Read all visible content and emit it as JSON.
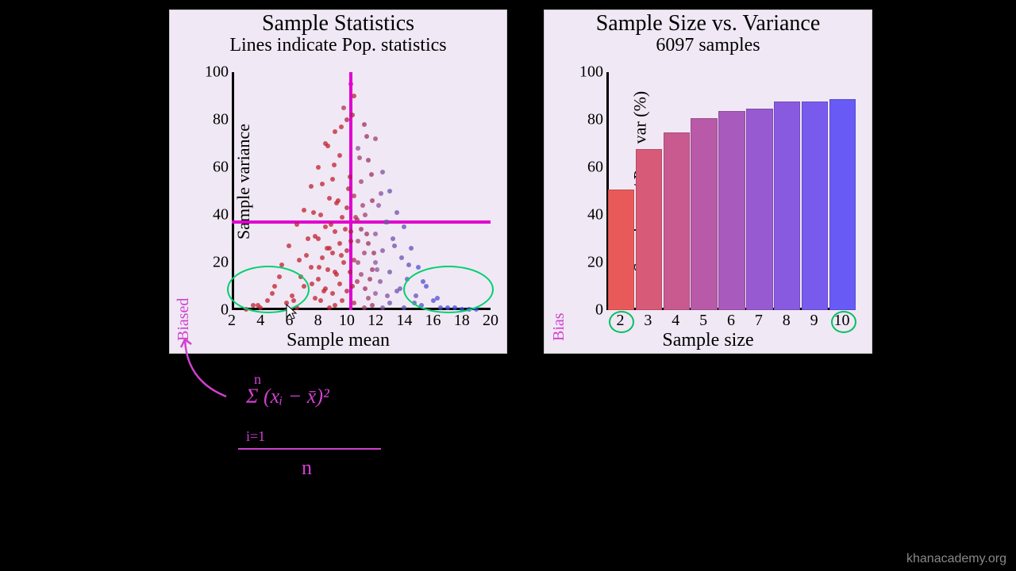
{
  "watermark": "khanacademy.org",
  "annotations": {
    "biased_left": "Biased",
    "biased_right": "Bias",
    "formula_top": "Σ (xᵢ − x̄)²",
    "formula_idx": "i=1",
    "formula_n_top": "n",
    "formula_denom": "n"
  },
  "scatter": {
    "title": "Sample Statistics",
    "subtitle": "Lines indicate Pop. statistics",
    "xlabel": "Sample mean",
    "ylabel": "Sample variance",
    "xlim": [
      2,
      20
    ],
    "ylim": [
      0,
      100
    ],
    "xticks": [
      2,
      4,
      6,
      8,
      10,
      12,
      14,
      16,
      18,
      20
    ],
    "yticks": [
      0,
      20,
      40,
      60,
      80,
      100
    ],
    "pop_mean_x": 10.3,
    "pop_var_y": 37,
    "cross_color": "#e000d0",
    "point_radius": 3,
    "points": [
      [
        10.3,
        95,
        "#e000d0"
      ],
      [
        10.5,
        90,
        "#c02030"
      ],
      [
        9.8,
        85,
        "#b03050"
      ],
      [
        10.0,
        80,
        "#b02040"
      ],
      [
        11.2,
        78,
        "#a03060"
      ],
      [
        9.2,
        75,
        "#c02030"
      ],
      [
        12.0,
        72,
        "#a04070"
      ],
      [
        8.5,
        70,
        "#c02030"
      ],
      [
        10.8,
        68,
        "#9050a0"
      ],
      [
        9.5,
        65,
        "#c02030"
      ],
      [
        11.5,
        63,
        "#a03060"
      ],
      [
        8.0,
        60,
        "#c02030"
      ],
      [
        12.5,
        58,
        "#8050a0"
      ],
      [
        10.2,
        56,
        "#b02040"
      ],
      [
        9.0,
        55,
        "#c02030"
      ],
      [
        11.0,
        54,
        "#a04070"
      ],
      [
        7.5,
        52,
        "#c02030"
      ],
      [
        13.0,
        50,
        "#7050b0"
      ],
      [
        10.5,
        48,
        "#b03050"
      ],
      [
        8.8,
        47,
        "#c02030"
      ],
      [
        11.8,
        46,
        "#a03060"
      ],
      [
        9.3,
        45,
        "#c02030"
      ],
      [
        12.2,
        44,
        "#9050a0"
      ],
      [
        10.0,
        43,
        "#b02040"
      ],
      [
        7.0,
        42,
        "#c02030"
      ],
      [
        13.5,
        41,
        "#7050b0"
      ],
      [
        8.2,
        40,
        "#c02030"
      ],
      [
        11.3,
        40,
        "#a04070"
      ],
      [
        9.7,
        39,
        "#c02030"
      ],
      [
        10.7,
        38,
        "#b03050"
      ],
      [
        12.8,
        37,
        "#8050a0"
      ],
      [
        6.5,
        36,
        "#c02030"
      ],
      [
        14.0,
        35,
        "#6050c0"
      ],
      [
        8.5,
        35,
        "#c02030"
      ],
      [
        11.0,
        34,
        "#a03060"
      ],
      [
        9.2,
        33,
        "#c02030"
      ],
      [
        10.3,
        33,
        "#b02040"
      ],
      [
        12.0,
        32,
        "#9050a0"
      ],
      [
        7.8,
        31,
        "#c02030"
      ],
      [
        13.2,
        30,
        "#7050b0"
      ],
      [
        8.0,
        30,
        "#c02030"
      ],
      [
        10.8,
        29,
        "#a04070"
      ],
      [
        9.5,
        28,
        "#c02030"
      ],
      [
        11.5,
        28,
        "#a03060"
      ],
      [
        6.0,
        27,
        "#c02030"
      ],
      [
        14.5,
        26,
        "#6050c0"
      ],
      [
        8.8,
        26,
        "#c02030"
      ],
      [
        10.0,
        25,
        "#b02040"
      ],
      [
        12.5,
        25,
        "#8050a0"
      ],
      [
        9.0,
        24,
        "#c02030"
      ],
      [
        11.2,
        24,
        "#a04070"
      ],
      [
        7.2,
        23,
        "#c02030"
      ],
      [
        13.8,
        22,
        "#7050b0"
      ],
      [
        8.3,
        22,
        "#c02030"
      ],
      [
        10.5,
        21,
        "#b03050"
      ],
      [
        9.8,
        20,
        "#c02030"
      ],
      [
        12.0,
        20,
        "#9050a0"
      ],
      [
        5.5,
        19,
        "#c02030"
      ],
      [
        15.0,
        18,
        "#5050d0"
      ],
      [
        7.5,
        18,
        "#c02030"
      ],
      [
        11.8,
        17,
        "#a03060"
      ],
      [
        8.7,
        17,
        "#c02030"
      ],
      [
        10.2,
        16,
        "#b02040"
      ],
      [
        13.0,
        16,
        "#7050b0"
      ],
      [
        9.3,
        15,
        "#c02030"
      ],
      [
        11.0,
        15,
        "#a04070"
      ],
      [
        6.8,
        14,
        "#c02030"
      ],
      [
        14.2,
        13,
        "#6050c0"
      ],
      [
        8.0,
        13,
        "#c02030"
      ],
      [
        10.7,
        12,
        "#b03050"
      ],
      [
        12.3,
        12,
        "#8050a0"
      ],
      [
        9.5,
        11,
        "#c02030"
      ],
      [
        5.0,
        10,
        "#c02030"
      ],
      [
        15.5,
        10,
        "#5050d0"
      ],
      [
        7.0,
        10,
        "#c02030"
      ],
      [
        11.3,
        9,
        "#a03060"
      ],
      [
        8.5,
        9,
        "#c02030"
      ],
      [
        13.5,
        8,
        "#7050b0"
      ],
      [
        10.0,
        8,
        "#b02040"
      ],
      [
        9.0,
        7,
        "#c02030"
      ],
      [
        12.0,
        7,
        "#9050a0"
      ],
      [
        6.2,
        6,
        "#c02030"
      ],
      [
        14.8,
        6,
        "#6050c0"
      ],
      [
        7.8,
        5,
        "#c02030"
      ],
      [
        11.5,
        5,
        "#a04070"
      ],
      [
        4.5,
        4,
        "#c02030"
      ],
      [
        16.0,
        4,
        "#5050d0"
      ],
      [
        8.2,
        4,
        "#c02030"
      ],
      [
        10.5,
        3,
        "#b03050"
      ],
      [
        13.0,
        3,
        "#7050b0"
      ],
      [
        5.8,
        3,
        "#c02030"
      ],
      [
        15.2,
        2,
        "#5050d0"
      ],
      [
        9.2,
        2,
        "#c02030"
      ],
      [
        11.8,
        2,
        "#a03060"
      ],
      [
        3.5,
        2,
        "#c02030"
      ],
      [
        17.0,
        1,
        "#4050e0"
      ],
      [
        6.5,
        1,
        "#c02030"
      ],
      [
        14.0,
        1,
        "#6050c0"
      ],
      [
        4.0,
        1,
        "#c02030"
      ],
      [
        16.5,
        1,
        "#5050d0"
      ],
      [
        8.8,
        1,
        "#c02030"
      ],
      [
        12.5,
        1,
        "#8050a0"
      ],
      [
        3.0,
        0.5,
        "#c02030"
      ],
      [
        18.0,
        0.5,
        "#4050e0"
      ],
      [
        10.4,
        82,
        "#b02040"
      ],
      [
        9.6,
        77,
        "#c02030"
      ],
      [
        11.4,
        73,
        "#a03060"
      ],
      [
        8.7,
        69,
        "#c02030"
      ],
      [
        10.9,
        64,
        "#a04070"
      ],
      [
        9.1,
        61,
        "#c02030"
      ],
      [
        11.7,
        57,
        "#a03060"
      ],
      [
        8.3,
        53,
        "#c02030"
      ],
      [
        10.1,
        51,
        "#b02040"
      ],
      [
        12.4,
        49,
        "#8050a0"
      ],
      [
        9.4,
        46,
        "#c02030"
      ],
      [
        11.1,
        44,
        "#a04070"
      ],
      [
        7.7,
        41,
        "#c02030"
      ],
      [
        10.6,
        39,
        "#b03050"
      ],
      [
        12.7,
        37,
        "#8050a0"
      ],
      [
        8.9,
        36,
        "#c02030"
      ],
      [
        9.9,
        34,
        "#c02030"
      ],
      [
        11.4,
        32,
        "#a03060"
      ],
      [
        7.3,
        30,
        "#c02030"
      ],
      [
        10.3,
        29,
        "#b02040"
      ],
      [
        13.3,
        27,
        "#7050b0"
      ],
      [
        8.6,
        26,
        "#c02030"
      ],
      [
        11.9,
        24,
        "#a03060"
      ],
      [
        9.6,
        23,
        "#c02030"
      ],
      [
        6.7,
        21,
        "#c02030"
      ],
      [
        10.8,
        20,
        "#a04070"
      ],
      [
        14.3,
        19,
        "#6050c0"
      ],
      [
        8.1,
        18,
        "#c02030"
      ],
      [
        12.1,
        17,
        "#9050a0"
      ],
      [
        9.2,
        16,
        "#c02030"
      ],
      [
        5.3,
        14,
        "#c02030"
      ],
      [
        11.6,
        13,
        "#a03060"
      ],
      [
        15.3,
        12,
        "#5050d0"
      ],
      [
        7.6,
        11,
        "#c02030"
      ],
      [
        10.4,
        10,
        "#b02040"
      ],
      [
        13.7,
        9,
        "#7050b0"
      ],
      [
        8.4,
        8,
        "#c02030"
      ],
      [
        4.8,
        7,
        "#c02030"
      ],
      [
        12.8,
        6,
        "#8050a0"
      ],
      [
        16.3,
        5,
        "#5050d0"
      ],
      [
        6.3,
        4,
        "#c02030"
      ],
      [
        9.7,
        4,
        "#c02030"
      ],
      [
        14.7,
        3,
        "#6050c0"
      ],
      [
        3.8,
        2,
        "#c02030"
      ],
      [
        17.5,
        1,
        "#4050e0"
      ],
      [
        11.2,
        1,
        "#a04070"
      ],
      [
        18.5,
        0.5,
        "#4050e0"
      ],
      [
        19.0,
        0.5,
        "#4050e0"
      ]
    ]
  },
  "bars": {
    "title": "Sample Size vs. Variance",
    "subtitle": "6097 samples",
    "xlabel": "Sample size",
    "ylabel": "Sample var / Pop. var (%)",
    "xlim": [
      1.5,
      10.5
    ],
    "ylim": [
      0,
      100
    ],
    "yticks": [
      0,
      20,
      40,
      60,
      80,
      100
    ],
    "categories": [
      2,
      3,
      4,
      5,
      6,
      7,
      8,
      9,
      10
    ],
    "values": [
      50,
      67,
      74,
      80,
      83,
      84,
      87,
      87,
      88
    ],
    "colors": [
      "#e85a5a",
      "#d75a78",
      "#c85a90",
      "#b85aa8",
      "#a85abd",
      "#985ad0",
      "#885ae0",
      "#785aec",
      "#685af5"
    ],
    "bar_width": 0.9,
    "circled": [
      2,
      10
    ],
    "circle_color": "#00c060"
  }
}
